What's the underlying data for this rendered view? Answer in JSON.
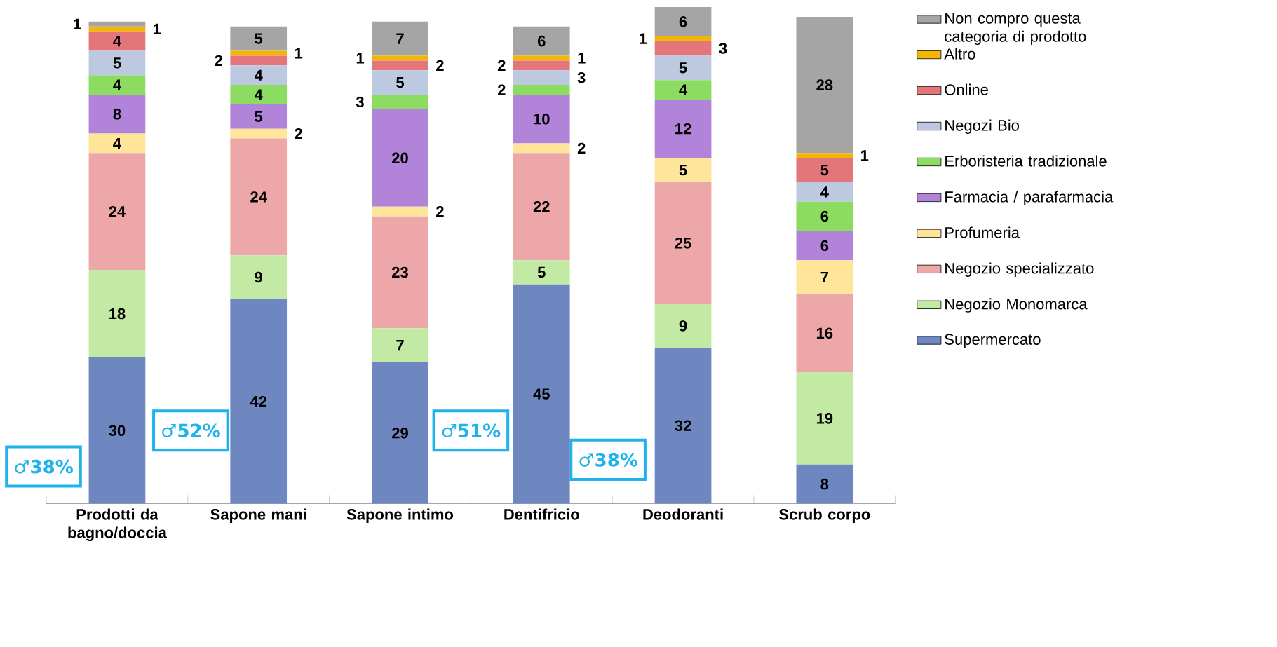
{
  "chart_data": {
    "type": "bar",
    "stacked": true,
    "data_labels": true,
    "legend": "right",
    "categories": [
      "Prodotti da bagno/doccia",
      "Sapone mani",
      "Sapone intimo",
      "Dentifricio",
      "Deodoranti",
      "Scrub corpo"
    ],
    "series": [
      {
        "name": "Supermercato",
        "color": "#6f87c0",
        "values": [
          30,
          42,
          29,
          45,
          32,
          8
        ]
      },
      {
        "name": "Negozio Monomarca",
        "color": "#c2eaa4",
        "values": [
          18,
          9,
          7,
          5,
          9,
          19
        ]
      },
      {
        "name": "Negozio specializzato",
        "color": "#eea7a9",
        "values": [
          24,
          24,
          23,
          22,
          25,
          16
        ]
      },
      {
        "name": "Profumeria",
        "color": "#fee59a",
        "values": [
          4,
          2,
          2,
          2,
          5,
          7
        ]
      },
      {
        "name": "Farmacia / parafarmacia",
        "color": "#b183d9",
        "values": [
          8,
          5,
          20,
          10,
          12,
          6
        ]
      },
      {
        "name": "Erboristeria tradizionale",
        "color": "#8cdc62",
        "values": [
          4,
          4,
          3,
          2,
          4,
          6
        ]
      },
      {
        "name": "Negozi Bio",
        "color": "#bdc9e0",
        "values": [
          5,
          4,
          5,
          3,
          5,
          4
        ]
      },
      {
        "name": "Online",
        "color": "#e4757a",
        "values": [
          4,
          2,
          2,
          2,
          3,
          5
        ]
      },
      {
        "name": "Altro",
        "color": "#f2b705",
        "values": [
          1,
          1,
          1,
          1,
          1,
          1
        ]
      },
      {
        "name": "Non compro questa categoria di prodotto",
        "color": "#a5a5a5",
        "values": [
          1,
          5,
          7,
          6,
          6,
          28
        ]
      }
    ],
    "annotations": [
      "♂38%",
      "♂52%",
      "♂51%",
      "♂38%"
    ]
  }
}
